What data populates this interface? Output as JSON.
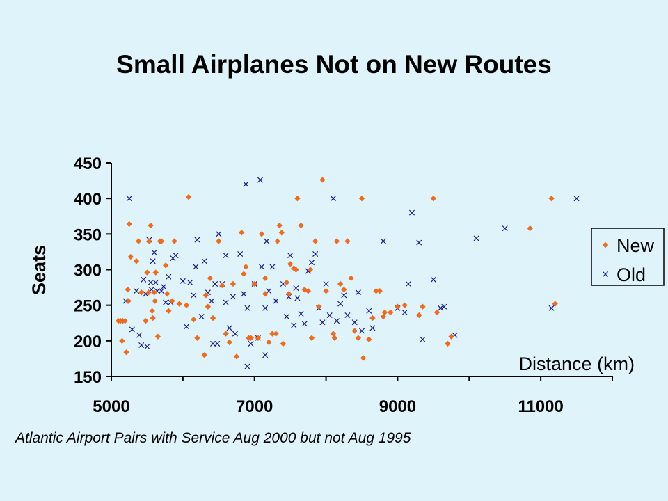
{
  "slide": {
    "title": "Small Airplanes Not on New Routes",
    "footnote": "Atlantic Airport Pairs with Service Aug 2000 but not Aug 1995"
  },
  "colors": {
    "background": "#dff3fb",
    "new": "#f26b1d",
    "old": "#1a1a8c"
  },
  "chart_data": {
    "type": "scatter",
    "title": "",
    "xlabel": "Distance (km)",
    "ylabel": "Seats",
    "xlim": [
      5000,
      12000
    ],
    "ylim": [
      150,
      450
    ],
    "xticks": [
      5000,
      7000,
      9000,
      11000
    ],
    "yticks": [
      150,
      200,
      250,
      300,
      350,
      400,
      450
    ],
    "grid": false,
    "legend_position": "right",
    "series": [
      {
        "name": "New",
        "marker": "diamond",
        "color": "#f26b1d",
        "points": [
          [
            5100,
            228
          ],
          [
            5130,
            228
          ],
          [
            5160,
            228
          ],
          [
            5190,
            228
          ],
          [
            5150,
            200
          ],
          [
            5210,
            184
          ],
          [
            5230,
            272
          ],
          [
            5250,
            364
          ],
          [
            5240,
            256
          ],
          [
            5270,
            318
          ],
          [
            5380,
            340
          ],
          [
            5350,
            312
          ],
          [
            5420,
            268
          ],
          [
            5480,
            228
          ],
          [
            5500,
            296
          ],
          [
            5520,
            268
          ],
          [
            5530,
            340
          ],
          [
            5550,
            362
          ],
          [
            5570,
            242
          ],
          [
            5580,
            232
          ],
          [
            5600,
            268
          ],
          [
            5610,
            256
          ],
          [
            5620,
            296
          ],
          [
            5650,
            206
          ],
          [
            5680,
            340
          ],
          [
            5700,
            340
          ],
          [
            5760,
            306
          ],
          [
            5780,
            266
          ],
          [
            5800,
            242
          ],
          [
            5850,
            256
          ],
          [
            5880,
            340
          ],
          [
            5950,
            252
          ],
          [
            6050,
            250
          ],
          [
            6080,
            402
          ],
          [
            6150,
            230
          ],
          [
            6200,
            204
          ],
          [
            6300,
            180
          ],
          [
            6320,
            264
          ],
          [
            6350,
            248
          ],
          [
            6380,
            288
          ],
          [
            6420,
            232
          ],
          [
            6500,
            340
          ],
          [
            6550,
            278
          ],
          [
            6600,
            210
          ],
          [
            6650,
            198
          ],
          [
            6700,
            280
          ],
          [
            6750,
            178
          ],
          [
            6820,
            352
          ],
          [
            6850,
            294
          ],
          [
            6880,
            304
          ],
          [
            6920,
            204
          ],
          [
            6950,
            204
          ],
          [
            7000,
            280
          ],
          [
            7050,
            204
          ],
          [
            7100,
            350
          ],
          [
            7150,
            288
          ],
          [
            7150,
            266
          ],
          [
            7200,
            198
          ],
          [
            7250,
            210
          ],
          [
            7300,
            210
          ],
          [
            7320,
            340
          ],
          [
            7350,
            362
          ],
          [
            7380,
            352
          ],
          [
            7400,
            196
          ],
          [
            7450,
            282
          ],
          [
            7480,
            266
          ],
          [
            7500,
            308
          ],
          [
            7550,
            302
          ],
          [
            7580,
            300
          ],
          [
            7600,
            400
          ],
          [
            7650,
            362
          ],
          [
            7700,
            272
          ],
          [
            7750,
            270
          ],
          [
            7780,
            300
          ],
          [
            7800,
            204
          ],
          [
            7850,
            340
          ],
          [
            7900,
            248
          ],
          [
            7950,
            426
          ],
          [
            8000,
            270
          ],
          [
            8100,
            210
          ],
          [
            8120,
            204
          ],
          [
            8150,
            340
          ],
          [
            8200,
            280
          ],
          [
            8250,
            272
          ],
          [
            8300,
            340
          ],
          [
            8350,
            288
          ],
          [
            8400,
            214
          ],
          [
            8450,
            204
          ],
          [
            8500,
            400
          ],
          [
            8520,
            176
          ],
          [
            8600,
            202
          ],
          [
            8650,
            232
          ],
          [
            8700,
            270
          ],
          [
            8750,
            270
          ],
          [
            8800,
            234
          ],
          [
            8820,
            240
          ],
          [
            8900,
            240
          ],
          [
            9000,
            248
          ],
          [
            9100,
            250
          ],
          [
            9300,
            236
          ],
          [
            9350,
            248
          ],
          [
            9500,
            400
          ],
          [
            9550,
            240
          ],
          [
            9700,
            196
          ],
          [
            9750,
            206
          ],
          [
            10850,
            358
          ],
          [
            11150,
            400
          ],
          [
            11200,
            252
          ]
        ]
      },
      {
        "name": "Old",
        "marker": "x",
        "color": "#1a1a8c",
        "points": [
          [
            5200,
            256
          ],
          [
            5250,
            400
          ],
          [
            5290,
            216
          ],
          [
            5350,
            270
          ],
          [
            5390,
            208
          ],
          [
            5420,
            194
          ],
          [
            5450,
            286
          ],
          [
            5480,
            266
          ],
          [
            5500,
            192
          ],
          [
            5530,
            342
          ],
          [
            5550,
            282
          ],
          [
            5560,
            272
          ],
          [
            5580,
            312
          ],
          [
            5600,
            324
          ],
          [
            5620,
            282
          ],
          [
            5640,
            270
          ],
          [
            5700,
            270
          ],
          [
            5730,
            276
          ],
          [
            5760,
            254
          ],
          [
            5800,
            290
          ],
          [
            5830,
            254
          ],
          [
            5860,
            316
          ],
          [
            5900,
            320
          ],
          [
            6000,
            284
          ],
          [
            6050,
            220
          ],
          [
            6100,
            282
          ],
          [
            6150,
            264
          ],
          [
            6180,
            304
          ],
          [
            6200,
            342
          ],
          [
            6260,
            234
          ],
          [
            6300,
            312
          ],
          [
            6350,
            268
          ],
          [
            6400,
            256
          ],
          [
            6420,
            196
          ],
          [
            6450,
            280
          ],
          [
            6480,
            196
          ],
          [
            6500,
            350
          ],
          [
            6550,
            280
          ],
          [
            6600,
            254
          ],
          [
            6600,
            320
          ],
          [
            6650,
            218
          ],
          [
            6700,
            262
          ],
          [
            6730,
            210
          ],
          [
            6800,
            322
          ],
          [
            6850,
            266
          ],
          [
            6880,
            420
          ],
          [
            6900,
            246
          ],
          [
            6950,
            196
          ],
          [
            7000,
            280
          ],
          [
            7050,
            204
          ],
          [
            7080,
            426
          ],
          [
            7100,
            304
          ],
          [
            7150,
            246
          ],
          [
            7170,
            340
          ],
          [
            7200,
            270
          ],
          [
            7250,
            304
          ],
          [
            7300,
            256
          ],
          [
            7400,
            280
          ],
          [
            7450,
            234
          ],
          [
            7480,
            262
          ],
          [
            7500,
            320
          ],
          [
            7550,
            222
          ],
          [
            7580,
            274
          ],
          [
            7600,
            260
          ],
          [
            7650,
            238
          ],
          [
            7700,
            224
          ],
          [
            7750,
            298
          ],
          [
            7800,
            310
          ],
          [
            7850,
            322
          ],
          [
            7900,
            246
          ],
          [
            7950,
            226
          ],
          [
            8000,
            280
          ],
          [
            8050,
            236
          ],
          [
            8100,
            400
          ],
          [
            8150,
            228
          ],
          [
            8200,
            252
          ],
          [
            8250,
            264
          ],
          [
            8300,
            236
          ],
          [
            8400,
            226
          ],
          [
            8450,
            268
          ],
          [
            8500,
            214
          ],
          [
            8600,
            242
          ],
          [
            8650,
            218
          ],
          [
            8800,
            340
          ],
          [
            9000,
            246
          ],
          [
            9100,
            240
          ],
          [
            9150,
            280
          ],
          [
            9200,
            380
          ],
          [
            9300,
            338
          ],
          [
            9350,
            202
          ],
          [
            9500,
            286
          ],
          [
            9600,
            246
          ],
          [
            9650,
            248
          ],
          [
            9800,
            208
          ],
          [
            10100,
            344
          ],
          [
            10500,
            358
          ],
          [
            11150,
            246
          ],
          [
            11500,
            400
          ],
          [
            6900,
            164
          ],
          [
            7150,
            180
          ]
        ]
      }
    ]
  }
}
